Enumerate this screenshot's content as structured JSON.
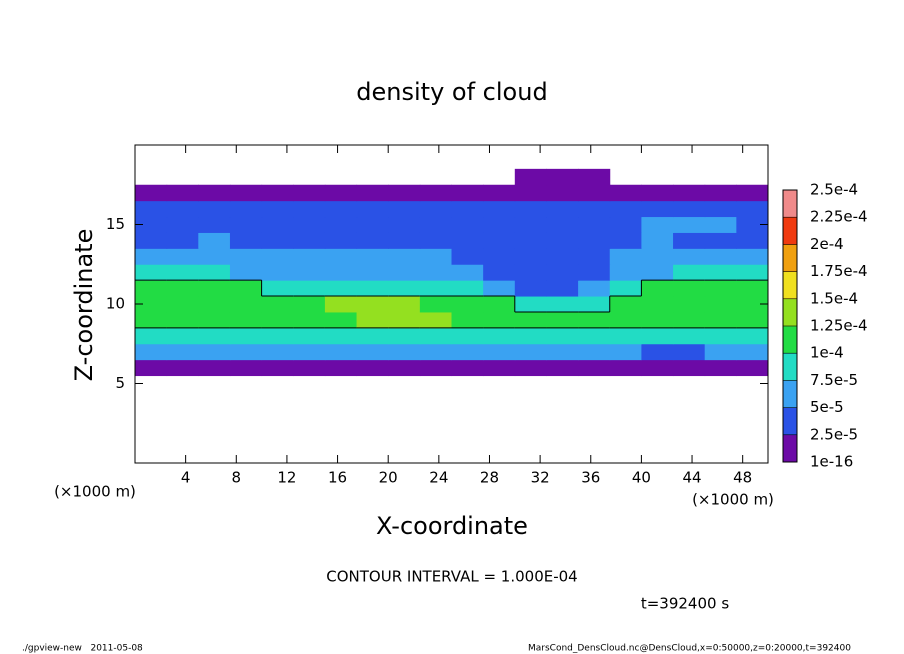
{
  "chart_data": {
    "type": "contour",
    "title": "density of cloud",
    "xlabel": "X-coordinate",
    "ylabel": "Z-coordinate",
    "x_unit": "(×1000 m)",
    "y_unit": "(×1000 m)",
    "xlim": [
      0,
      50
    ],
    "ylim": [
      0,
      20
    ],
    "xticks": [
      4,
      8,
      12,
      16,
      20,
      24,
      28,
      32,
      36,
      40,
      44,
      48
    ],
    "yticks": [
      5,
      10,
      15
    ],
    "x": [
      1.25,
      3.75,
      6.25,
      8.75,
      11.25,
      13.75,
      16.25,
      18.75,
      21.25,
      23.75,
      26.25,
      28.75,
      31.25,
      33.75,
      36.25,
      38.75,
      41.25,
      43.75,
      46.25,
      48.75
    ],
    "z": [
      6,
      7,
      8,
      9,
      10,
      11,
      12,
      13,
      14,
      15,
      16,
      17,
      18
    ],
    "values": [
      [
        1.5e-05,
        1.5e-05,
        1.5e-05,
        1.5e-05,
        1.5e-05,
        1.5e-05,
        1.5e-05,
        1.5e-05,
        1.5e-05,
        1.5e-05,
        1.5e-05,
        1.5e-05,
        1.5e-05,
        1.5e-05,
        1.5e-05,
        1.5e-05,
        1.5e-05,
        1.5e-05,
        1.5e-05,
        1.5e-05
      ],
      [
        5.5e-05,
        5.2e-05,
        5.5e-05,
        5.8e-05,
        5.5e-05,
        5.6e-05,
        5.5e-05,
        5.4e-05,
        5.5e-05,
        5.6e-05,
        5.5e-05,
        5.8e-05,
        5.5e-05,
        5.4e-05,
        5.5e-05,
        5.5e-05,
        4.6e-05,
        4.8e-05,
        5.5e-05,
        5.6e-05
      ],
      [
        8.5e-05,
        8.5e-05,
        8.5e-05,
        8.5e-05,
        8.5e-05,
        8.5e-05,
        8.5e-05,
        8.5e-05,
        8.5e-05,
        8.5e-05,
        8.5e-05,
        8.2e-05,
        8.2e-05,
        8.2e-05,
        8.5e-05,
        8.5e-05,
        8.5e-05,
        8.5e-05,
        8.5e-05,
        8.5e-05
      ],
      [
        0.000108,
        0.00011,
        0.000112,
        0.00011,
        0.000115,
        0.000118,
        0.00012,
        0.000127,
        0.000128,
        0.000126,
        0.000122,
        0.000115,
        0.000105,
        0.000102,
        0.000106,
        0.000108,
        0.00011,
        0.000107,
        0.000105,
        0.000104
      ],
      [
        0.000105,
        0.000108,
        0.00011,
        0.000112,
        0.000115,
        0.00012,
        0.000127,
        0.00013,
        0.000128,
        0.000122,
        0.000115,
        0.000102,
        8e-05,
        8.5e-05,
        9.2e-05,
        0.000105,
        0.000108,
        0.000106,
        0.000104,
        0.000103
      ],
      [
        0.000102,
        0.000104,
        0.000103,
        0.000102,
        9.5e-05,
        9e-05,
        9e-05,
        9.2e-05,
        8.8e-05,
        8.5e-05,
        8e-05,
        7e-05,
        4e-05,
        4.2e-05,
        6e-05,
        9e-05,
        0.000102,
        0.000103,
        0.000102,
        0.000101
      ],
      [
        7.8e-05,
        8e-05,
        7.6e-05,
        7.2e-05,
        6.8e-05,
        6.5e-05,
        6.2e-05,
        6e-05,
        6e-05,
        5.8e-05,
        5.5e-05,
        4.5e-05,
        3.5e-05,
        3.6e-05,
        4.5e-05,
        6e-05,
        7e-05,
        7.6e-05,
        7.8e-05,
        7.5e-05
      ],
      [
        5.5e-05,
        5.8e-05,
        5.2e-05,
        5.6e-05,
        5.4e-05,
        5.5e-05,
        5.2e-05,
        5.6e-05,
        5.3e-05,
        5.1e-05,
        4.8e-05,
        4e-05,
        3.4e-05,
        3.5e-05,
        4e-05,
        5.2e-05,
        5.5e-05,
        5.3e-05,
        5.6e-05,
        5.4e-05
      ],
      [
        4.6e-05,
        4.8e-05,
        5.1e-05,
        4.7e-05,
        4.5e-05,
        4.8e-05,
        4.6e-05,
        4.4e-05,
        4.6e-05,
        4.3e-05,
        4.2e-05,
        4e-05,
        3.5e-05,
        3.6e-05,
        4.2e-05,
        4.8e-05,
        5.2e-05,
        4.8e-05,
        4.6e-05,
        4.7e-05
      ],
      [
        4.2e-05,
        4.4e-05,
        4.1e-05,
        4.3e-05,
        4e-05,
        4.2e-05,
        4.1e-05,
        4e-05,
        4.2e-05,
        4e-05,
        3.9e-05,
        3.8e-05,
        3.6e-05,
        3.7e-05,
        4.2e-05,
        4.6e-05,
        5.2e-05,
        5.4e-05,
        5e-05,
        4.8e-05
      ],
      [
        2.6e-05,
        2.6e-05,
        2.6e-05,
        2.6e-05,
        2.6e-05,
        2.6e-05,
        2.6e-05,
        2.6e-05,
        2.6e-05,
        2.6e-05,
        2.6e-05,
        2.6e-05,
        2.6e-05,
        2.6e-05,
        2.6e-05,
        2.6e-05,
        2.6e-05,
        2.6e-05,
        2.6e-05,
        2.6e-05
      ],
      [
        1e-05,
        1e-05,
        1e-05,
        1e-05,
        1e-05,
        1e-05,
        1e-05,
        1e-05,
        1e-05,
        1e-05,
        1e-05,
        1e-05,
        1e-05,
        1e-05,
        1e-05,
        1e-05,
        1e-05,
        1e-05,
        1e-05,
        1e-05
      ],
      [
        null,
        null,
        null,
        null,
        null,
        null,
        null,
        null,
        null,
        null,
        null,
        null,
        1e-05,
        1e-05,
        1e-05,
        null,
        null,
        null,
        null,
        null
      ]
    ],
    "levels": [
      {
        "value": 1e-16,
        "label": "1e-16"
      },
      {
        "value": 2.5e-05,
        "label": "2.5e-5"
      },
      {
        "value": 5e-05,
        "label": "5e-5"
      },
      {
        "value": 7.5e-05,
        "label": "7.5e-5"
      },
      {
        "value": 0.0001,
        "label": "1e-4"
      },
      {
        "value": 0.000125,
        "label": "1.25e-4"
      },
      {
        "value": 0.00015,
        "label": "1.5e-4"
      },
      {
        "value": 0.000175,
        "label": "1.75e-4"
      },
      {
        "value": 0.0002,
        "label": "2e-4"
      },
      {
        "value": 0.000225,
        "label": "2.25e-4"
      },
      {
        "value": 0.00025,
        "label": "2.5e-4"
      }
    ],
    "colors": [
      "#6c0aa6",
      "#2a52e6",
      "#3aa2f2",
      "#22dcc4",
      "#22dc44",
      "#94e020",
      "#f0e020",
      "#f0a010",
      "#f03a10",
      "#f08a8a"
    ],
    "contour_interval": 0.0001,
    "contour_note": "CONTOUR INTERVAL = 1.000E-04",
    "time_note": "t=392400 s",
    "footer_left": "./gpview-new   2011-05-08",
    "footer_right": "MarsCond_DensCloud.nc@DensCloud,x=0:50000,z=0:20000,t=392400"
  }
}
